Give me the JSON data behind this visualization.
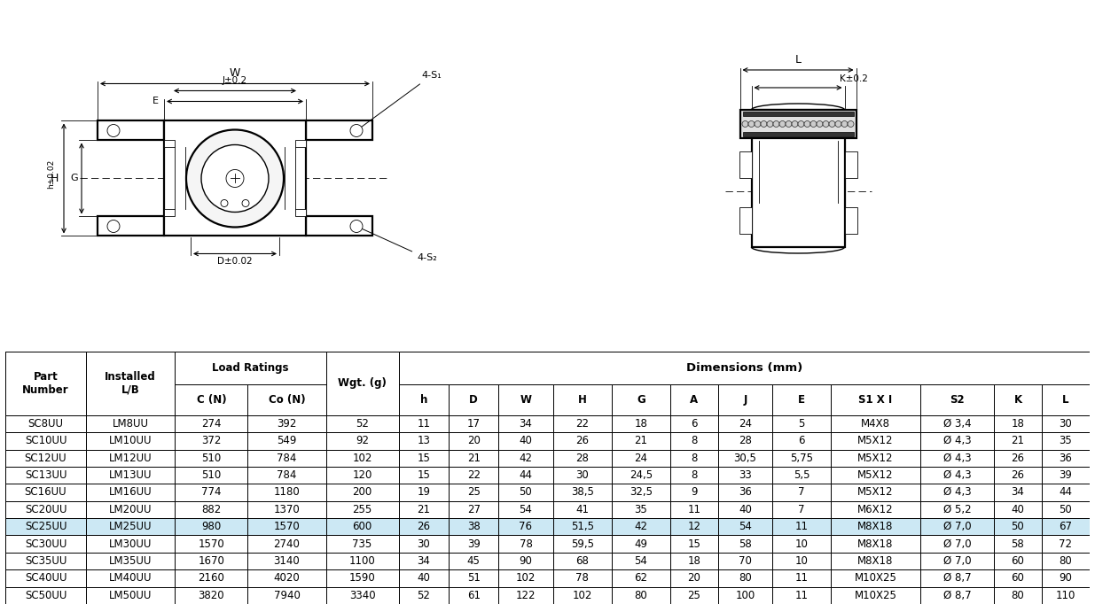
{
  "rows": [
    [
      "SC8UU",
      "LM8UU",
      "274",
      "392",
      "52",
      "11",
      "17",
      "34",
      "22",
      "18",
      "6",
      "24",
      "5",
      "M4X8",
      "Ø 3,4",
      "18",
      "30"
    ],
    [
      "SC10UU",
      "LM10UU",
      "372",
      "549",
      "92",
      "13",
      "20",
      "40",
      "26",
      "21",
      "8",
      "28",
      "6",
      "M5X12",
      "Ø 4,3",
      "21",
      "35"
    ],
    [
      "SC12UU",
      "LM12UU",
      "510",
      "784",
      "102",
      "15",
      "21",
      "42",
      "28",
      "24",
      "8",
      "30,5",
      "5,75",
      "M5X12",
      "Ø 4,3",
      "26",
      "36"
    ],
    [
      "SC13UU",
      "LM13UU",
      "510",
      "784",
      "120",
      "15",
      "22",
      "44",
      "30",
      "24,5",
      "8",
      "33",
      "5,5",
      "M5X12",
      "Ø 4,3",
      "26",
      "39"
    ],
    [
      "SC16UU",
      "LM16UU",
      "774",
      "1180",
      "200",
      "19",
      "25",
      "50",
      "38,5",
      "32,5",
      "9",
      "36",
      "7",
      "M5X12",
      "Ø 4,3",
      "34",
      "44"
    ],
    [
      "SC20UU",
      "LM20UU",
      "882",
      "1370",
      "255",
      "21",
      "27",
      "54",
      "41",
      "35",
      "11",
      "40",
      "7",
      "M6X12",
      "Ø 5,2",
      "40",
      "50"
    ],
    [
      "SC25UU",
      "LM25UU",
      "980",
      "1570",
      "600",
      "26",
      "38",
      "76",
      "51,5",
      "42",
      "12",
      "54",
      "11",
      "M8X18",
      "Ø 7,0",
      "50",
      "67"
    ],
    [
      "SC30UU",
      "LM30UU",
      "1570",
      "2740",
      "735",
      "30",
      "39",
      "78",
      "59,5",
      "49",
      "15",
      "58",
      "10",
      "M8X18",
      "Ø 7,0",
      "58",
      "72"
    ],
    [
      "SC35UU",
      "LM35UU",
      "1670",
      "3140",
      "1100",
      "34",
      "45",
      "90",
      "68",
      "54",
      "18",
      "70",
      "10",
      "M8X18",
      "Ø 7,0",
      "60",
      "80"
    ],
    [
      "SC40UU",
      "LM40UU",
      "2160",
      "4020",
      "1590",
      "40",
      "51",
      "102",
      "78",
      "62",
      "20",
      "80",
      "11",
      "M10X25",
      "Ø 8,7",
      "60",
      "90"
    ],
    [
      "SC50UU",
      "LM50UU",
      "3820",
      "7940",
      "3340",
      "52",
      "61",
      "122",
      "102",
      "80",
      "25",
      "100",
      "11",
      "M10X25",
      "Ø 8,7",
      "80",
      "110"
    ]
  ],
  "highlight_row": 6,
  "background_color": "#ffffff"
}
